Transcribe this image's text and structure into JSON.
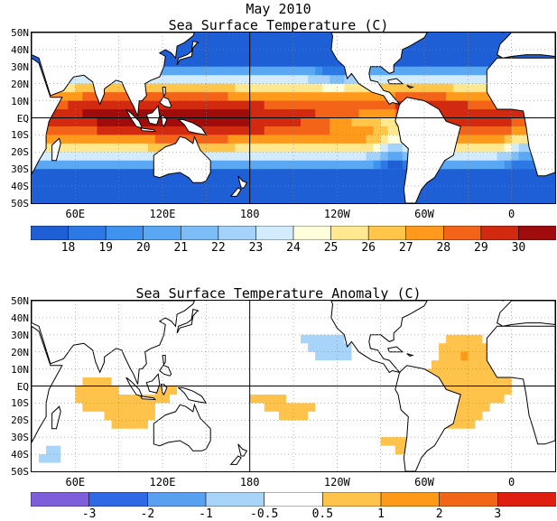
{
  "page_title": "May 2010",
  "chart_data": [
    {
      "type": "heatmap",
      "title": "Sea Surface Temperature (C)",
      "lat_ticks": [
        "50N",
        "40N",
        "30N",
        "20N",
        "10N",
        "EQ",
        "10S",
        "20S",
        "30S",
        "40S",
        "50S"
      ],
      "lon_ticks": [
        "60E",
        "120E",
        "180",
        "120W",
        "60W",
        "0"
      ],
      "lat_range": [
        -50,
        50
      ],
      "lon_range": [
        30,
        390
      ],
      "grid": "dotted",
      "colorbar": {
        "labels": [
          "18",
          "19",
          "20",
          "21",
          "22",
          "23",
          "24",
          "25",
          "26",
          "27",
          "28",
          "29",
          "30"
        ],
        "colors": [
          "#1f5fd6",
          "#2c78e4",
          "#3f92ee",
          "#5aa8f4",
          "#7cbcf7",
          "#a4d2fa",
          "#d2ecfd",
          "#ffffdc",
          "#ffe890",
          "#ffc64a",
          "#ff9a1c",
          "#f36418",
          "#d22a10",
          "#a00c0c"
        ]
      }
    },
    {
      "type": "heatmap",
      "title": "Sea Surface Temperature Anomaly (C)",
      "lat_ticks": [
        "50N",
        "40N",
        "30N",
        "20N",
        "10N",
        "EQ",
        "10S",
        "20S",
        "30S",
        "40S",
        "50S"
      ],
      "lon_ticks": [
        "60E",
        "120E",
        "180",
        "120W",
        "60W",
        "0"
      ],
      "lat_range": [
        -50,
        50
      ],
      "lon_range": [
        30,
        390
      ],
      "grid": "dotted",
      "colorbar": {
        "labels": [
          "-3",
          "-2",
          "-1",
          "-0.5",
          "0.5",
          "1",
          "2",
          "3"
        ],
        "colors": [
          "#7d5fdc",
          "#2f6ae6",
          "#5aa0f0",
          "#a8d4fa",
          "#ffffff",
          "#ffc24a",
          "#ff9a18",
          "#f26618",
          "#e01e10"
        ]
      }
    }
  ]
}
